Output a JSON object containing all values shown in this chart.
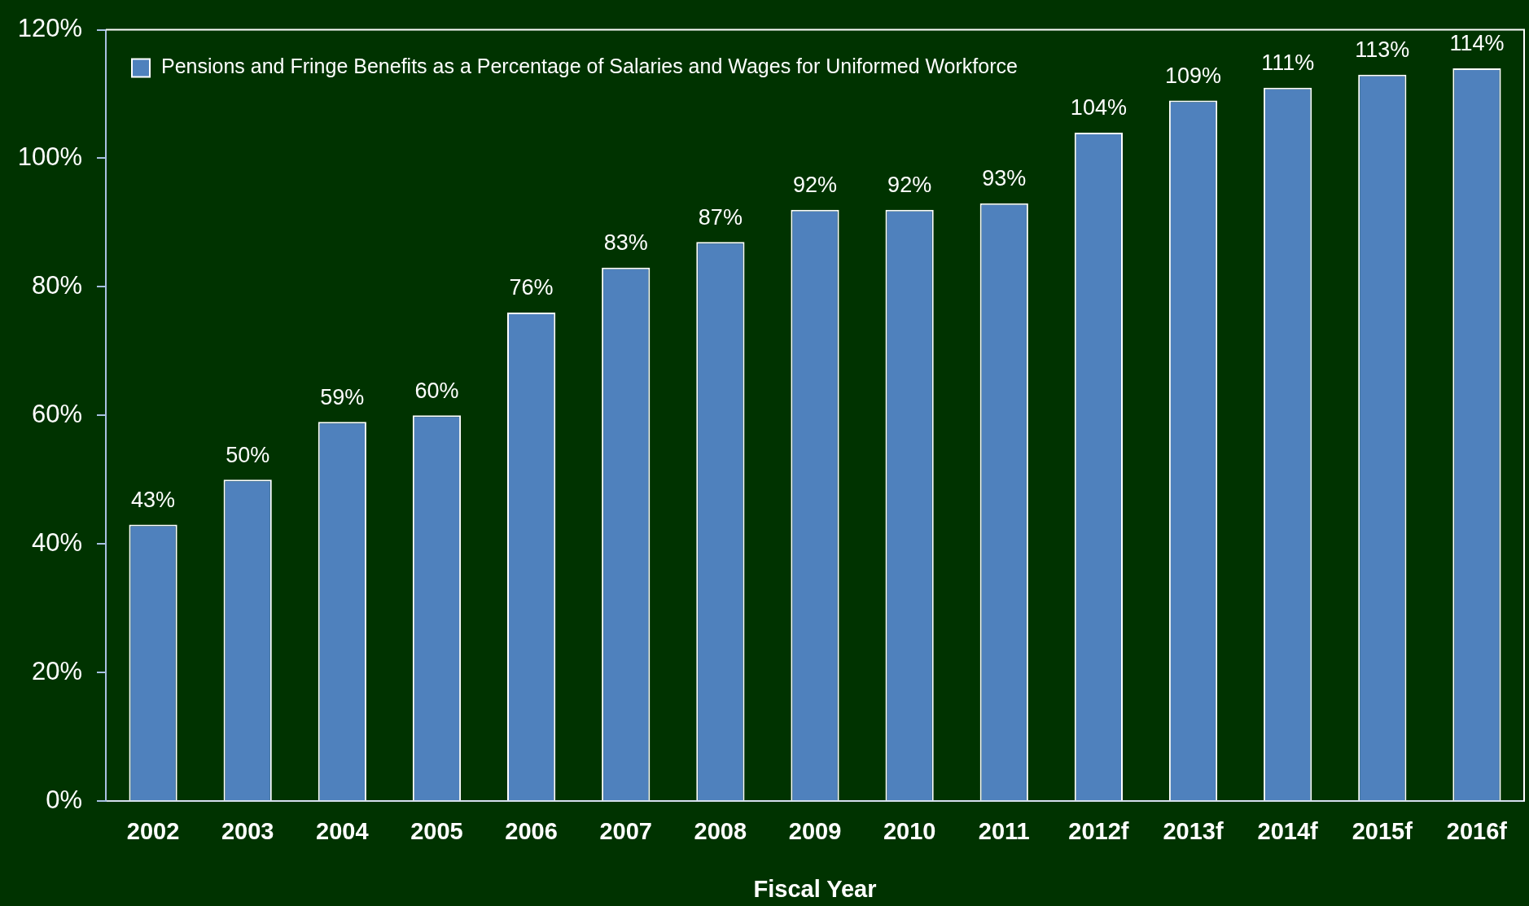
{
  "chart_data": {
    "type": "bar",
    "xlabel": "Fiscal Year",
    "categories": [
      "2002",
      "2003",
      "2004",
      "2005",
      "2006",
      "2007",
      "2008",
      "2009",
      "2010",
      "2011",
      "2012f",
      "2013f",
      "2014f",
      "2015f",
      "2016f"
    ],
    "series": [
      {
        "name": "Pensions and Fringe Benefits as a Percentage of Salaries and Wages for Uniformed Workforce",
        "color": "#4f81bd",
        "values": [
          43,
          50,
          59,
          60,
          76,
          83,
          87,
          92,
          92,
          93,
          104,
          109,
          111,
          113,
          114
        ],
        "value_labels": [
          "43%",
          "50%",
          "59%",
          "60%",
          "76%",
          "83%",
          "87%",
          "92%",
          "92%",
          "93%",
          "104%",
          "109%",
          "111%",
          "113%",
          "114%"
        ]
      }
    ],
    "ylim": [
      0,
      120
    ],
    "yticks": [
      {
        "value": 0,
        "label": "0%"
      },
      {
        "value": 20,
        "label": "20%"
      },
      {
        "value": 40,
        "label": "40%"
      },
      {
        "value": 60,
        "label": "60%"
      },
      {
        "value": 80,
        "label": "80%"
      },
      {
        "value": 100,
        "label": "100%"
      },
      {
        "value": 120,
        "label": "120%"
      }
    ],
    "legend": "top left"
  }
}
